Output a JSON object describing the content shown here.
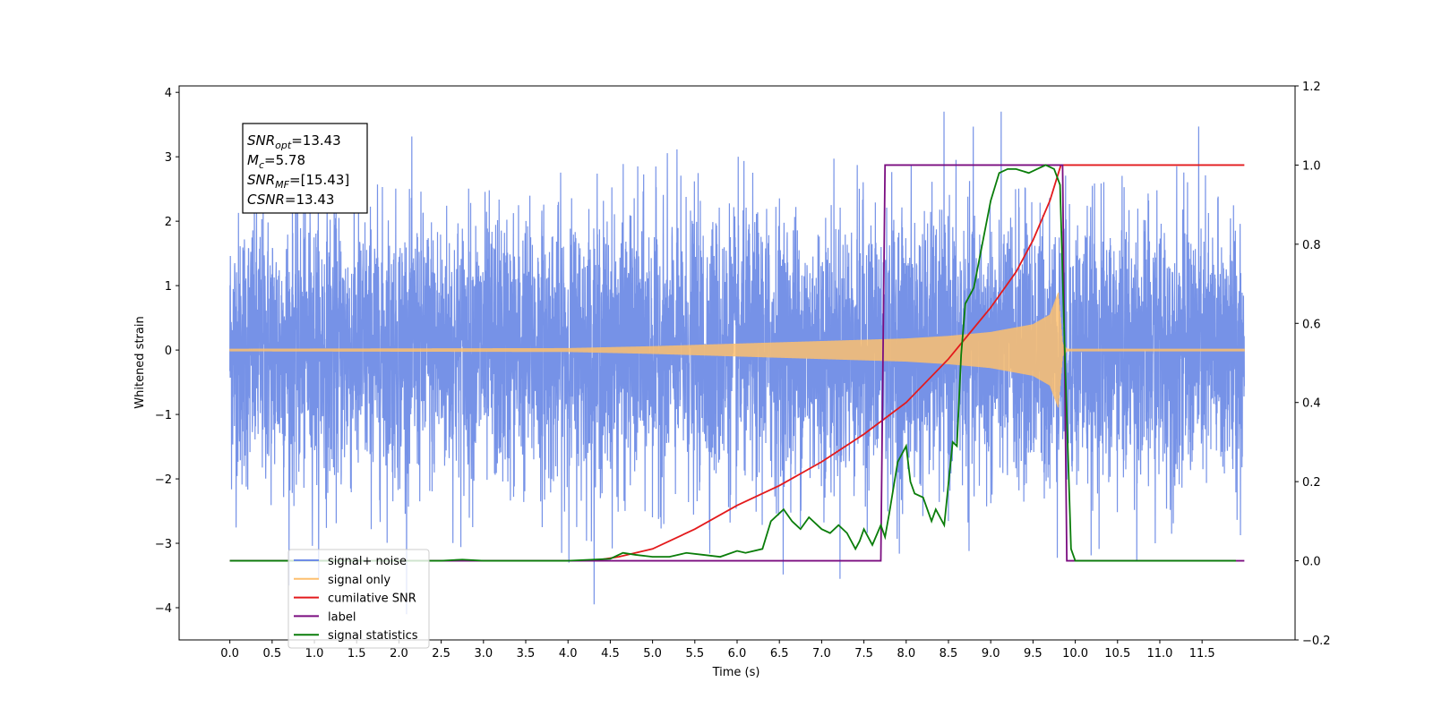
{
  "chart_data": {
    "type": "line",
    "xlabel": "Time (s)",
    "ylabel": "Whitened strain",
    "xlim": [
      -0.6,
      12.6
    ],
    "ylim": [
      -4.5,
      4.1
    ],
    "y2lim": [
      -0.2,
      1.2
    ],
    "x_ticks": [
      0.0,
      0.5,
      1.0,
      1.5,
      2.0,
      2.5,
      3.0,
      3.5,
      4.0,
      4.5,
      5.0,
      5.5,
      6.0,
      6.5,
      7.0,
      7.5,
      8.0,
      8.5,
      9.0,
      9.5,
      10.0,
      10.5,
      11.0,
      11.5
    ],
    "x_tick_labels": [
      "0.0",
      "0.5",
      "1.0",
      "1.5",
      "2.0",
      "2.5",
      "3.0",
      "3.5",
      "4.0",
      "4.5",
      "5.0",
      "5.5",
      "6.0",
      "6.5",
      "7.0",
      "7.5",
      "8.0",
      "8.5",
      "9.0",
      "9.5",
      "10.0",
      "10.5",
      "11.0",
      "11.5"
    ],
    "y_ticks": [
      -4,
      -3,
      -2,
      -1,
      0,
      1,
      2,
      3,
      4
    ],
    "y_tick_labels": [
      "−4",
      "−3",
      "−2",
      "−1",
      "0",
      "1",
      "2",
      "3",
      "4"
    ],
    "y2_ticks": [
      -0.2,
      0.0,
      0.2,
      0.4,
      0.6,
      0.8,
      1.0,
      1.2
    ],
    "y2_tick_labels": [
      "−0.2",
      "0.0",
      "0.2",
      "0.4",
      "0.6",
      "0.8",
      "1.0",
      "1.2"
    ],
    "grid": false,
    "legend_position": "lower-left",
    "stats_box": [
      {
        "sym": "SNR",
        "sub": "opt",
        "val": "=13.43"
      },
      {
        "sym": "M",
        "sub": "c",
        "val": "=5.78"
      },
      {
        "sym": "SNR",
        "sub": "MF",
        "val": "=[15.43]"
      },
      {
        "sym": "CSNR",
        "sub": "",
        "val": "=13.43"
      }
    ],
    "series": [
      {
        "name": "signal+ noise",
        "color": "#6f8ce6",
        "axis": "left",
        "kind": "noise",
        "x_range": [
          0,
          12.0
        ],
        "amplitude_range": [
          -4.1,
          3.7
        ]
      },
      {
        "name": "signal only",
        "color": "#fdbf6f",
        "axis": "left",
        "kind": "chirp",
        "envelope": {
          "x": [
            0,
            4.0,
            5.0,
            6.0,
            7.0,
            8.0,
            8.5,
            9.0,
            9.5,
            9.7,
            9.8,
            9.85,
            9.9,
            12.0
          ],
          "y": [
            0.02,
            0.03,
            0.06,
            0.1,
            0.14,
            0.18,
            0.22,
            0.28,
            0.4,
            0.55,
            0.9,
            0.1,
            0.02,
            0.02
          ]
        }
      },
      {
        "name": "cumilative SNR",
        "color": "#e31a1c",
        "axis": "right",
        "x": [
          0,
          4.3,
          4.6,
          5.0,
          5.5,
          6.0,
          6.5,
          7.0,
          7.5,
          8.0,
          8.5,
          9.0,
          9.3,
          9.5,
          9.7,
          9.83,
          9.84,
          12.0
        ],
        "y": [
          0,
          0,
          0.01,
          0.03,
          0.08,
          0.14,
          0.19,
          0.25,
          0.32,
          0.4,
          0.51,
          0.64,
          0.73,
          0.81,
          0.91,
          1.0,
          1.0,
          1.0
        ]
      },
      {
        "name": "label",
        "color": "#7b0d80",
        "axis": "right",
        "x": [
          0,
          7.7,
          7.75,
          9.85,
          9.9,
          12.0
        ],
        "y": [
          0,
          0,
          1.0,
          1.0,
          0,
          0
        ]
      },
      {
        "name": "signal statistics",
        "color": "#0a7d0a",
        "axis": "right",
        "x": [
          0,
          2.5,
          2.75,
          3.0,
          3.5,
          4.0,
          4.5,
          4.65,
          4.8,
          5.0,
          5.2,
          5.4,
          5.6,
          5.8,
          6.0,
          6.1,
          6.3,
          6.4,
          6.55,
          6.65,
          6.75,
          6.85,
          7.0,
          7.1,
          7.2,
          7.3,
          7.4,
          7.45,
          7.5,
          7.6,
          7.7,
          7.75,
          7.8,
          7.9,
          8.0,
          8.05,
          8.1,
          8.2,
          8.3,
          8.35,
          8.45,
          8.55,
          8.6,
          8.65,
          8.7,
          8.8,
          8.9,
          9.0,
          9.1,
          9.2,
          9.3,
          9.45,
          9.55,
          9.65,
          9.75,
          9.82,
          9.88,
          9.95,
          10.0,
          10.1,
          11.9
        ],
        "y": [
          0,
          0,
          0.003,
          0,
          0,
          0,
          0.005,
          0.02,
          0.015,
          0.01,
          0.01,
          0.02,
          0.015,
          0.01,
          0.025,
          0.02,
          0.03,
          0.1,
          0.13,
          0.1,
          0.08,
          0.11,
          0.08,
          0.07,
          0.09,
          0.07,
          0.03,
          0.05,
          0.08,
          0.04,
          0.09,
          0.06,
          0.12,
          0.25,
          0.29,
          0.2,
          0.17,
          0.16,
          0.1,
          0.13,
          0.09,
          0.3,
          0.29,
          0.52,
          0.65,
          0.69,
          0.8,
          0.91,
          0.98,
          0.99,
          0.99,
          0.98,
          0.99,
          1.0,
          0.99,
          0.95,
          0.5,
          0.03,
          0.0,
          0.0,
          0.0
        ]
      }
    ],
    "legend_items": [
      {
        "name": "signal+ noise",
        "color": "#6f8ce6"
      },
      {
        "name": "signal only",
        "color": "#fdbf6f"
      },
      {
        "name": "cumilative SNR",
        "color": "#e31a1c"
      },
      {
        "name": "label",
        "color": "#7b0d80"
      },
      {
        "name": "signal statistics",
        "color": "#0a7d0a"
      }
    ]
  }
}
